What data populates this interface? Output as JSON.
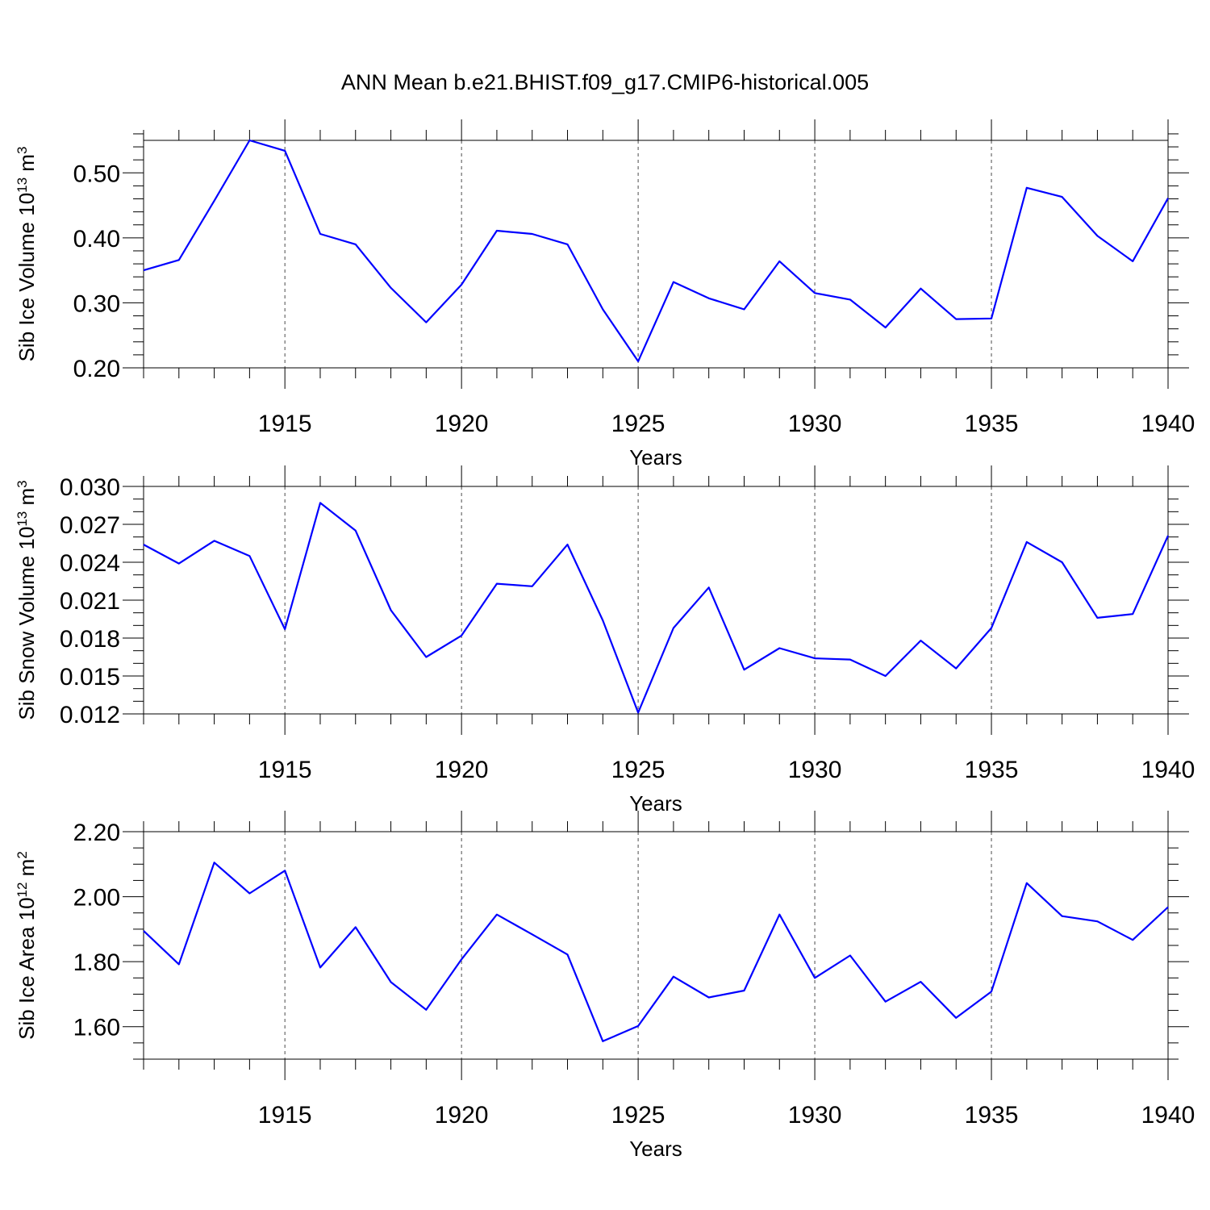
{
  "title": "ANN Mean b.e21.BHIST.f09_g17.CMIP6-historical.005",
  "chart_data": [
    {
      "type": "line",
      "ylabel_main": "Sib Ice Volume 10",
      "ylabel_exp": "13",
      "ylabel_unit": " m",
      "ylabel_unit_exp": "3",
      "xlabel": "Years",
      "xlim": [
        1911,
        1940
      ],
      "ylim": [
        0.2,
        0.55
      ],
      "yticks": [
        0.2,
        0.3,
        0.4,
        0.5
      ],
      "ytick_labels": [
        "0.20",
        "0.30",
        "0.40",
        "0.50"
      ],
      "yminor": 0.02,
      "xticks": [
        1915,
        1920,
        1925,
        1930,
        1935,
        1940
      ],
      "xtick_labels": [
        "1915",
        "1920",
        "1925",
        "1930",
        "1935",
        "1940"
      ],
      "grid": "dashed vertical at major x ticks",
      "color": "#0000ff",
      "x": [
        1911,
        1912,
        1913,
        1914,
        1915,
        1916,
        1917,
        1918,
        1919,
        1920,
        1921,
        1922,
        1923,
        1924,
        1925,
        1926,
        1927,
        1928,
        1929,
        1930,
        1931,
        1932,
        1933,
        1934,
        1935,
        1936,
        1937,
        1938,
        1939,
        1940
      ],
      "values": [
        0.35,
        0.366,
        0.457,
        0.55,
        0.534,
        0.406,
        0.39,
        0.323,
        0.27,
        0.328,
        0.411,
        0.406,
        0.39,
        0.29,
        0.21,
        0.332,
        0.307,
        0.29,
        0.364,
        0.315,
        0.305,
        0.262,
        0.322,
        0.275,
        0.276,
        0.477,
        0.463,
        0.403,
        0.364,
        0.461
      ]
    },
    {
      "type": "line",
      "ylabel_main": "Sib Snow Volume 10",
      "ylabel_exp": "13",
      "ylabel_unit": " m",
      "ylabel_unit_exp": "3",
      "xlabel": "Years",
      "xlim": [
        1911,
        1940
      ],
      "ylim": [
        0.012,
        0.03
      ],
      "yticks": [
        0.012,
        0.015,
        0.018,
        0.021,
        0.024,
        0.027,
        0.03
      ],
      "ytick_labels": [
        "0.012",
        "0.015",
        "0.018",
        "0.021",
        "0.024",
        "0.027",
        "0.030"
      ],
      "yminor": 0.001,
      "xticks": [
        1915,
        1920,
        1925,
        1930,
        1935,
        1940
      ],
      "xtick_labels": [
        "1915",
        "1920",
        "1925",
        "1930",
        "1935",
        "1940"
      ],
      "grid": "dashed vertical at major x ticks",
      "color": "#0000ff",
      "x": [
        1911,
        1912,
        1913,
        1914,
        1915,
        1916,
        1917,
        1918,
        1919,
        1920,
        1921,
        1922,
        1923,
        1924,
        1925,
        1926,
        1927,
        1928,
        1929,
        1930,
        1931,
        1932,
        1933,
        1934,
        1935,
        1936,
        1937,
        1938,
        1939,
        1940
      ],
      "values": [
        0.0254,
        0.0239,
        0.0257,
        0.0245,
        0.0187,
        0.0287,
        0.0265,
        0.0202,
        0.0165,
        0.0182,
        0.0223,
        0.0221,
        0.0254,
        0.0194,
        0.0121,
        0.0188,
        0.022,
        0.0155,
        0.0172,
        0.0164,
        0.0163,
        0.015,
        0.0178,
        0.0156,
        0.0188,
        0.0256,
        0.024,
        0.0196,
        0.0199,
        0.0261
      ]
    },
    {
      "type": "line",
      "ylabel_main": "Sib Ice Area 10",
      "ylabel_exp": "12",
      "ylabel_unit": " m",
      "ylabel_unit_exp": "2",
      "xlabel": "Years",
      "xlim": [
        1911,
        1940
      ],
      "ylim": [
        1.5,
        2.2
      ],
      "yticks": [
        1.6,
        1.8,
        2.0,
        2.2
      ],
      "ytick_labels": [
        "1.60",
        "1.80",
        "2.00",
        "2.20"
      ],
      "yminor": 0.05,
      "xticks": [
        1915,
        1920,
        1925,
        1930,
        1935,
        1940
      ],
      "xtick_labels": [
        "1915",
        "1920",
        "1925",
        "1930",
        "1935",
        "1940"
      ],
      "grid": "dashed vertical at major x ticks",
      "color": "#0000ff",
      "x": [
        1911,
        1912,
        1913,
        1914,
        1915,
        1916,
        1917,
        1918,
        1919,
        1920,
        1921,
        1922,
        1923,
        1924,
        1925,
        1926,
        1927,
        1928,
        1929,
        1930,
        1931,
        1932,
        1933,
        1934,
        1935,
        1936,
        1937,
        1938,
        1939,
        1940
      ],
      "values": [
        1.895,
        1.792,
        2.105,
        2.01,
        2.08,
        1.782,
        1.906,
        1.737,
        1.652,
        1.807,
        1.945,
        1.884,
        1.822,
        1.555,
        1.602,
        1.754,
        1.69,
        1.711,
        1.945,
        1.75,
        1.819,
        1.677,
        1.738,
        1.627,
        1.708,
        2.042,
        1.94,
        1.924,
        1.867,
        1.968
      ]
    }
  ]
}
